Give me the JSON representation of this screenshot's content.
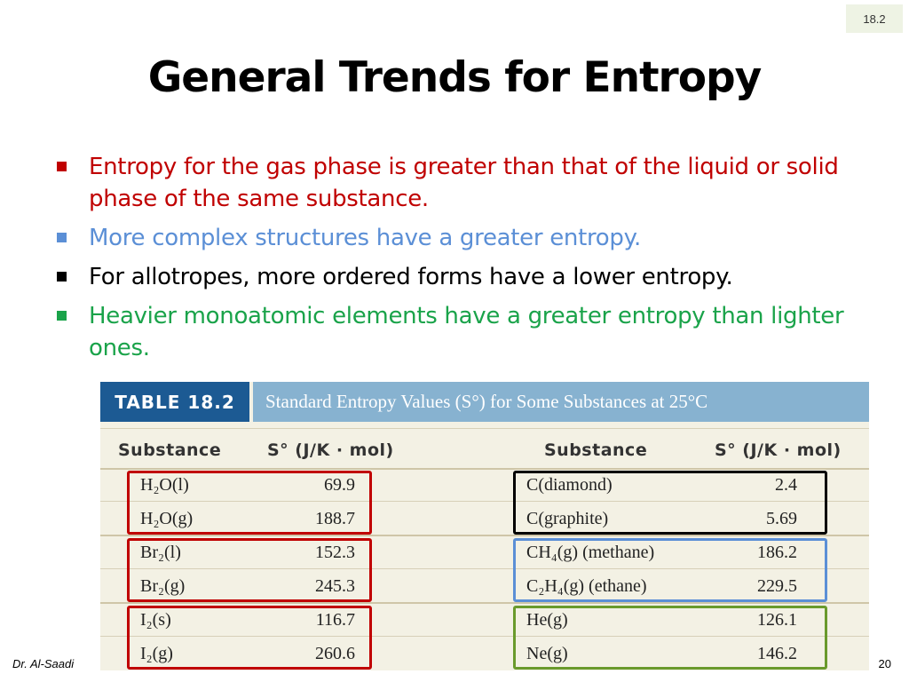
{
  "slide": {
    "section_badge": "18.2",
    "title": "General Trends for Entropy",
    "bullets": [
      {
        "text": "Entropy for the gas phase is greater than that of the liquid or solid phase of the same substance.",
        "color": "#c00000"
      },
      {
        "text": "More complex structures have a greater entropy.",
        "color": "#5b8fd6"
      },
      {
        "text": "For allotropes, more ordered forms have a lower entropy.",
        "color": "#000000"
      },
      {
        "text": "Heavier monoatomic elements have a greater entropy than lighter ones.",
        "color": "#1aa34a"
      }
    ],
    "footer_left": "Dr. Al-Saadi",
    "page_number": "20"
  },
  "table": {
    "label": "TABLE 18.2",
    "caption": "Standard Entropy Values (S°) for Some Substances at 25°C",
    "col_substance": "Substance",
    "col_value": "S° (J/K · mol)",
    "left_rows": [
      {
        "substance": "H₂O(l)",
        "value": "69.9"
      },
      {
        "substance": "H₂O(g)",
        "value": "188.7"
      },
      {
        "substance": "Br₂(l)",
        "value": "152.3"
      },
      {
        "substance": "Br₂(g)",
        "value": "245.3"
      },
      {
        "substance": "I₂(s)",
        "value": "116.7"
      },
      {
        "substance": "I₂(g)",
        "value": "260.6"
      }
    ],
    "right_rows": [
      {
        "substance": "C(diamond)",
        "value": "2.4"
      },
      {
        "substance": "C(graphite)",
        "value": "5.69"
      },
      {
        "substance": "CH₄(g) (methane)",
        "value": "186.2"
      },
      {
        "substance": "C₂H₄(g) (ethane)",
        "value": "229.5"
      },
      {
        "substance": "He(g)",
        "value": "126.1"
      },
      {
        "substance": "Ne(g)",
        "value": "146.2"
      }
    ],
    "colors": {
      "header_dark": "#1c5a93",
      "header_light": "#87b2d0",
      "background": "#f3f1e4",
      "box_red": "#c00000",
      "box_black": "#000000",
      "box_blue": "#5b8fd6",
      "box_green": "#6a9a2c"
    }
  }
}
